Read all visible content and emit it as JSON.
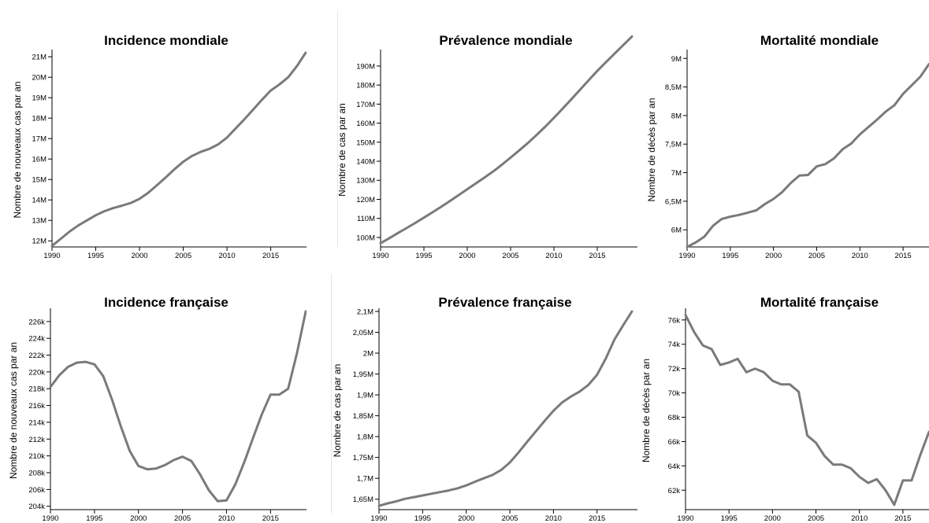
{
  "chart_data": [
    {
      "id": "incidence-mondiale",
      "type": "line",
      "title": "Incidence mondiale",
      "ylabel": "Nombre de nouveaux cas par an",
      "xlabel": "",
      "xlim": [
        1990,
        2019
      ],
      "ylim": [
        11700000,
        21200000
      ],
      "x_ticks": [
        "1990",
        "1995",
        "2000",
        "2005",
        "2010",
        "2015"
      ],
      "x_tick_values": [
        1990,
        1995,
        2000,
        2005,
        2010,
        2015
      ],
      "y_ticks": [
        "12M",
        "13M",
        "14M",
        "15M",
        "16M",
        "17M",
        "18M",
        "19M",
        "20M",
        "21M"
      ],
      "y_tick_values": [
        12000000,
        13000000,
        14000000,
        15000000,
        16000000,
        17000000,
        18000000,
        19000000,
        20000000,
        21000000
      ],
      "series": [
        {
          "x": [
            1990,
            1991,
            1992,
            1993,
            1994,
            1995,
            1996,
            1997,
            1998,
            1999,
            2000,
            2001,
            2002,
            2003,
            2004,
            2005,
            2006,
            2007,
            2008,
            2009,
            2010,
            2011,
            2012,
            2013,
            2014,
            2015,
            2016,
            2017,
            2018,
            2019
          ],
          "values": [
            11750000,
            12100000,
            12450000,
            12750000,
            13000000,
            13250000,
            13450000,
            13600000,
            13720000,
            13850000,
            14050000,
            14350000,
            14720000,
            15100000,
            15500000,
            15870000,
            16150000,
            16350000,
            16500000,
            16720000,
            17050000,
            17500000,
            17950000,
            18420000,
            18900000,
            19350000,
            19650000,
            20000000,
            20550000,
            21200000
          ]
        }
      ]
    },
    {
      "id": "prevalence-mondiale",
      "type": "line",
      "title": "Prévalence mondiale",
      "ylabel": "Nombre de cas par an",
      "xlabel": "",
      "xlim": [
        1990,
        2019
      ],
      "ylim": [
        95000000,
        197000000
      ],
      "x_ticks": [
        "1990",
        "1995",
        "2000",
        "2005",
        "2010",
        "2015"
      ],
      "x_tick_values": [
        1990,
        1995,
        2000,
        2005,
        2010,
        2015
      ],
      "y_ticks": [
        "100M",
        "110M",
        "120M",
        "130M",
        "140M",
        "150M",
        "160M",
        "170M",
        "180M",
        "190M"
      ],
      "y_tick_values": [
        100000000,
        110000000,
        120000000,
        130000000,
        140000000,
        150000000,
        160000000,
        170000000,
        180000000,
        190000000
      ],
      "series": [
        {
          "x": [
            1990,
            1991,
            1992,
            1993,
            1994,
            1995,
            1996,
            1997,
            1998,
            1999,
            2000,
            2001,
            2002,
            2003,
            2004,
            2005,
            2006,
            2007,
            2008,
            2009,
            2010,
            2011,
            2012,
            2013,
            2014,
            2015,
            2016,
            2017,
            2018,
            2019
          ],
          "values": [
            97000000,
            99600000,
            102300000,
            104900000,
            107600000,
            110400000,
            113200000,
            116100000,
            119100000,
            122200000,
            125300000,
            128400000,
            131500000,
            134700000,
            138200000,
            141900000,
            145700000,
            149600000,
            153800000,
            158200000,
            162800000,
            167600000,
            172500000,
            177500000,
            182500000,
            187400000,
            192000000,
            196500000,
            201000000,
            205500000
          ]
        }
      ]
    },
    {
      "id": "mortalite-mondiale",
      "type": "line",
      "title": "Mortalité mondiale",
      "ylabel": "Nombre de décès par an",
      "xlabel": "",
      "xlim": [
        1990,
        2018
      ],
      "ylim": [
        5700000,
        9100000
      ],
      "x_ticks": [
        "1990",
        "1995",
        "2000",
        "2005",
        "2010",
        "2015"
      ],
      "x_tick_values": [
        1990,
        1995,
        2000,
        2005,
        2010,
        2015
      ],
      "y_ticks": [
        "6M",
        "6,5M",
        "7M",
        "7,5M",
        "8M",
        "8,5M",
        "9M"
      ],
      "y_tick_values": [
        6000000,
        6500000,
        7000000,
        7500000,
        8000000,
        8500000,
        9000000
      ],
      "series": [
        {
          "x": [
            1990,
            1991,
            1992,
            1993,
            1994,
            1995,
            1996,
            1997,
            1998,
            1999,
            2000,
            2001,
            2002,
            2003,
            2004,
            2005,
            2006,
            2007,
            2008,
            2009,
            2010,
            2011,
            2012,
            2013,
            2014,
            2015,
            2016,
            2017,
            2018
          ],
          "values": [
            5700000,
            5780000,
            5880000,
            6070000,
            6190000,
            6230000,
            6260000,
            6300000,
            6340000,
            6450000,
            6540000,
            6660000,
            6820000,
            6950000,
            6960000,
            7110000,
            7150000,
            7250000,
            7410000,
            7510000,
            7670000,
            7800000,
            7930000,
            8070000,
            8180000,
            8380000,
            8530000,
            8680000,
            8900000
          ]
        }
      ]
    },
    {
      "id": "incidence-francaise",
      "type": "line",
      "title": "Incidence française",
      "ylabel": "Nombre de nouveaux cas par an",
      "xlabel": "",
      "xlim": [
        1990,
        2019
      ],
      "ylim": [
        203600,
        227200
      ],
      "x_ticks": [
        "1990",
        "1995",
        "2000",
        "2005",
        "2010",
        "2015"
      ],
      "x_tick_values": [
        1990,
        1995,
        2000,
        2005,
        2010,
        2015
      ],
      "y_ticks": [
        "204k",
        "206k",
        "208k",
        "210k",
        "212k",
        "214k",
        "216k",
        "218k",
        "220k",
        "222k",
        "224k",
        "226k"
      ],
      "y_tick_values": [
        204000,
        206000,
        208000,
        210000,
        212000,
        214000,
        216000,
        218000,
        220000,
        222000,
        224000,
        226000
      ],
      "series": [
        {
          "x": [
            1990,
            1991,
            1992,
            1993,
            1994,
            1995,
            1996,
            1997,
            1998,
            1999,
            2000,
            2001,
            2002,
            2003,
            2004,
            2005,
            2006,
            2007,
            2008,
            2009,
            2010,
            2011,
            2012,
            2013,
            2014,
            2015,
            2016,
            2017,
            2018,
            2019
          ],
          "values": [
            218200,
            219600,
            220600,
            221100,
            221200,
            220900,
            219500,
            216700,
            213500,
            210600,
            208800,
            208400,
            208500,
            208900,
            209500,
            209900,
            209400,
            207800,
            205900,
            204600,
            204700,
            206600,
            209200,
            212100,
            214900,
            217300,
            217300,
            218000,
            222200,
            227200
          ]
        }
      ]
    },
    {
      "id": "prevalence-francaise",
      "type": "line",
      "title": "Prévalence française",
      "ylabel": "Nombre de cas par an",
      "xlabel": "",
      "xlim": [
        1990,
        2019
      ],
      "ylim": [
        1625000,
        2100000
      ],
      "x_ticks": [
        "1990",
        "1995",
        "2000",
        "2005",
        "2010",
        "2015"
      ],
      "x_tick_values": [
        1990,
        1995,
        2000,
        2005,
        2010,
        2015
      ],
      "y_ticks": [
        "1,65M",
        "1,7M",
        "1,75M",
        "1,8M",
        "1,85M",
        "1,9M",
        "1,95M",
        "2M",
        "2,05M",
        "2,1M"
      ],
      "y_tick_values": [
        1650000,
        1700000,
        1750000,
        1800000,
        1850000,
        1900000,
        1950000,
        2000000,
        2050000,
        2100000
      ],
      "series": [
        {
          "x": [
            1990,
            1991,
            1992,
            1993,
            1994,
            1995,
            1996,
            1997,
            1998,
            1999,
            2000,
            2001,
            2002,
            2003,
            2004,
            2005,
            2006,
            2007,
            2008,
            2009,
            2010,
            2011,
            2012,
            2013,
            2014,
            2015,
            2016,
            2017,
            2018,
            2019
          ],
          "values": [
            1634000,
            1640000,
            1645000,
            1651000,
            1655000,
            1659000,
            1663000,
            1667000,
            1671000,
            1676000,
            1683000,
            1692000,
            1700000,
            1708000,
            1720000,
            1738000,
            1762000,
            1788000,
            1813000,
            1838000,
            1862000,
            1882000,
            1896000,
            1908000,
            1924000,
            1948000,
            1987000,
            2033000,
            2067000,
            2100000
          ]
        }
      ]
    },
    {
      "id": "mortalite-francaise",
      "type": "line",
      "title": "Mortalité française",
      "ylabel": "Nombre de décès par an",
      "xlabel": "",
      "xlim": [
        1990,
        2018
      ],
      "ylim": [
        60400,
        76700
      ],
      "x_ticks": [
        "1990",
        "1995",
        "2000",
        "2005",
        "2010",
        "2015"
      ],
      "x_tick_values": [
        1990,
        1995,
        2000,
        2005,
        2010,
        2015
      ],
      "y_ticks": [
        "62k",
        "64k",
        "66k",
        "68k",
        "70k",
        "72k",
        "74k",
        "76k"
      ],
      "y_tick_values": [
        62000,
        64000,
        66000,
        68000,
        70000,
        72000,
        74000,
        76000
      ],
      "series": [
        {
          "x": [
            1990,
            1991,
            1992,
            1993,
            1994,
            1995,
            1996,
            1997,
            1998,
            1999,
            2000,
            2001,
            2002,
            2003,
            2004,
            2005,
            2006,
            2007,
            2008,
            2009,
            2010,
            2011,
            2012,
            2013,
            2014,
            2015,
            2016,
            2017,
            2018
          ],
          "values": [
            76400,
            75000,
            73900,
            73600,
            72300,
            72500,
            72800,
            71700,
            72000,
            71700,
            71000,
            70700,
            70700,
            70100,
            66500,
            65900,
            64800,
            64100,
            64100,
            63800,
            63100,
            62600,
            62900,
            62000,
            60800,
            62800,
            62800,
            64900,
            66800
          ]
        }
      ]
    }
  ]
}
